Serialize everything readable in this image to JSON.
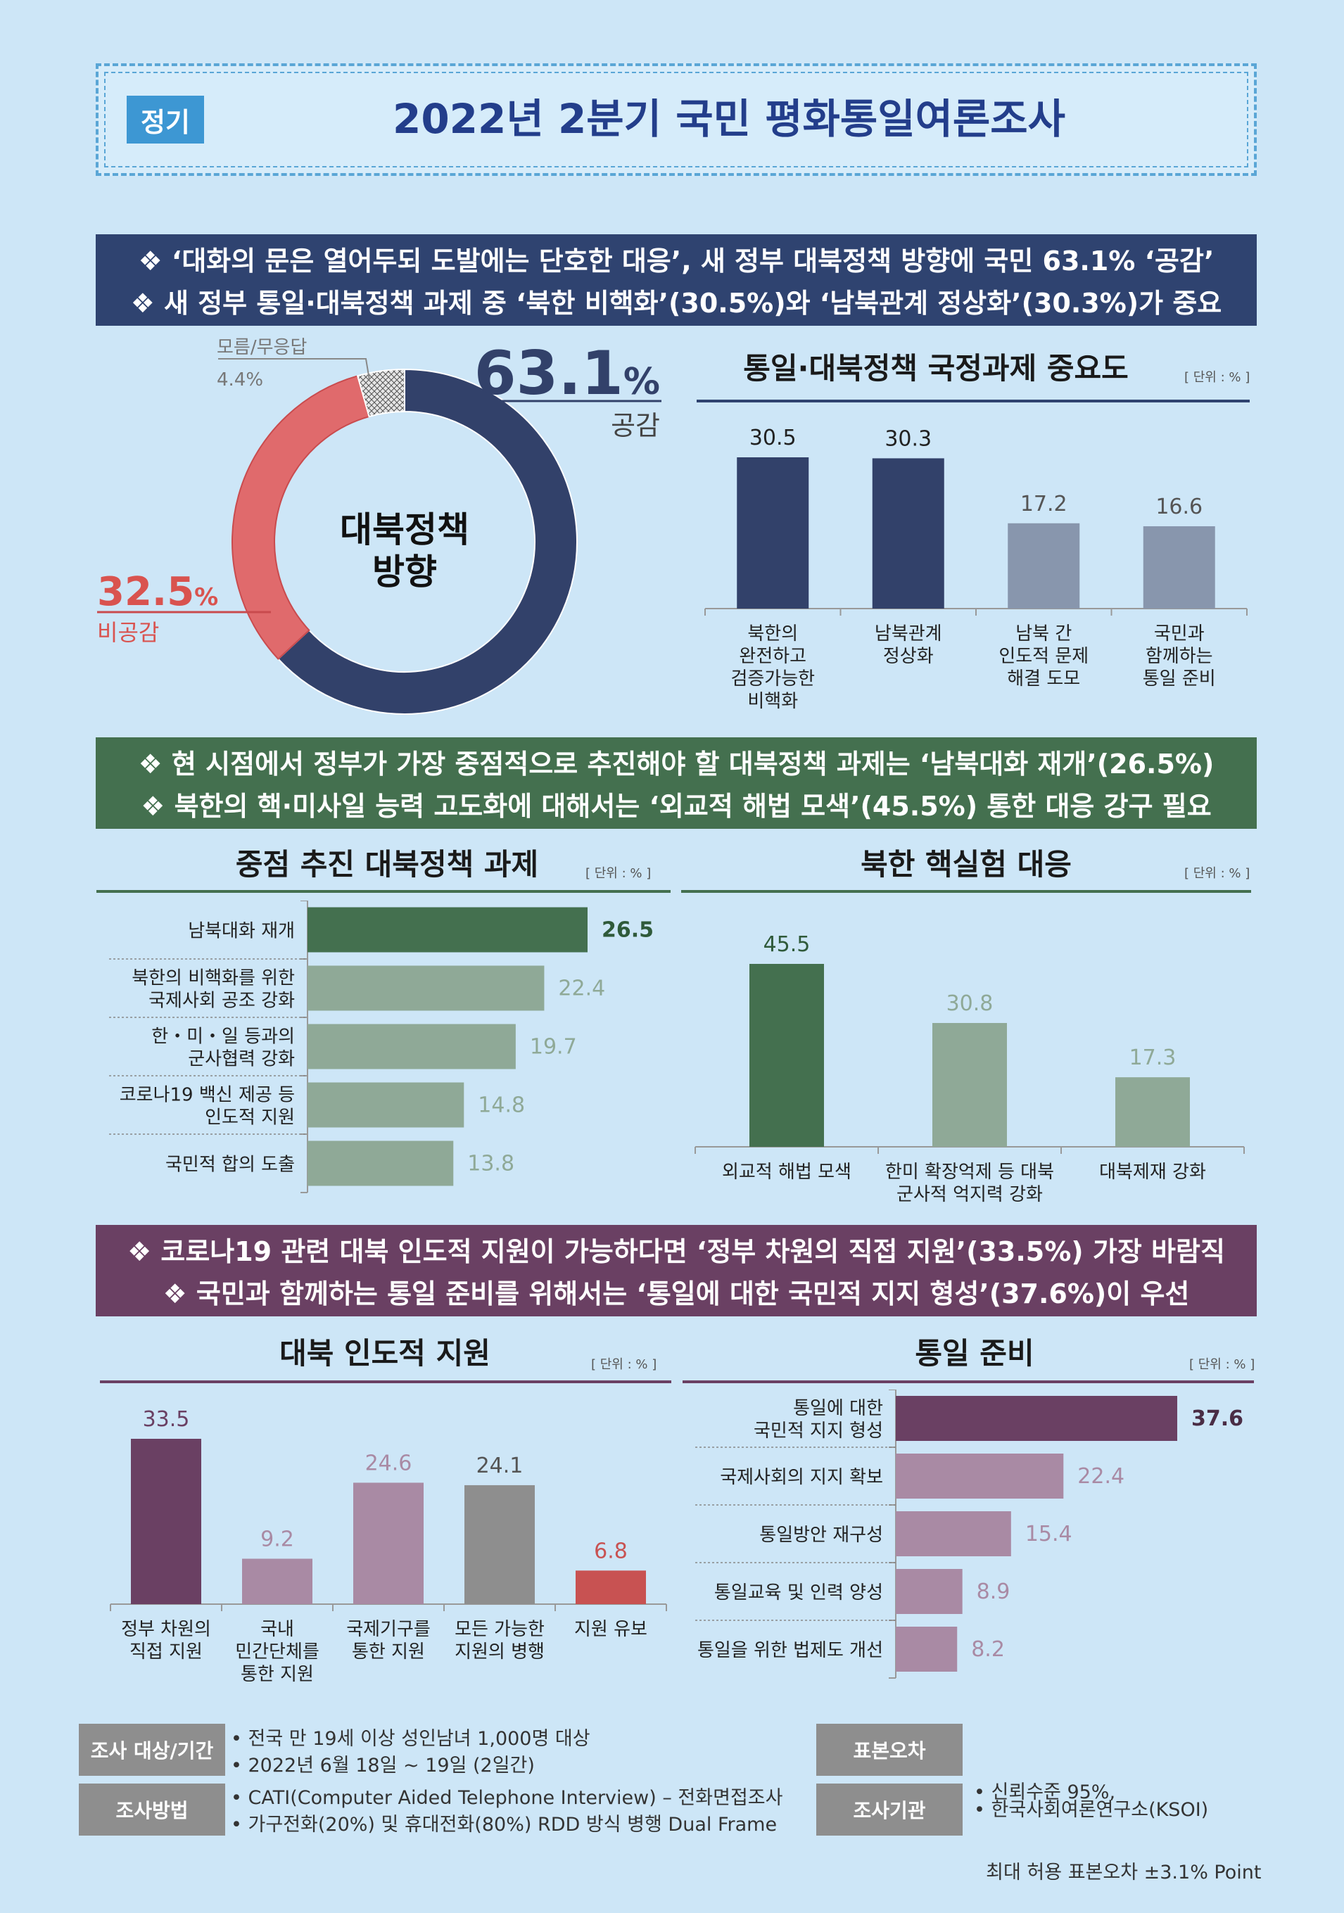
{
  "header": {
    "tag": "정기",
    "title": "2022년 2분기 국민 평화통일여론조사"
  },
  "banners": {
    "section1": [
      "❖ ‘대화의 문은 열어두되 도발에는 단호한 대응’, 새 정부 대북정책 방향에 국민 63.1% ‘공감’",
      "❖ 새 정부 통일·대북정책 과제 중 ‘북한 비핵화’(30.5%)와 ‘남북관계 정상화’(30.3%)가 중요"
    ],
    "section2": [
      "❖ 현 시점에서 정부가 가장 중점적으로 추진해야 할 대북정책 과제는 ‘남북대화 재개’(26.5%)",
      "❖ 북한의 핵·미사일 능력 고도화에 대해서는 ‘외교적 해법 모색’(45.5%) 통한 대응 강구 필요"
    ],
    "section3": [
      "❖ 코로나19 관련 대북 인도적 지원이 가능하다면 ‘정부 차원의 직접 지원’(33.5%) 가장 바람직",
      "❖ 국민과 함께하는 통일 준비를 위해서는 ‘통일에 대한 국민적 지지 형성’(37.6%)이 우선"
    ]
  },
  "chart_data": [
    {
      "type": "pie",
      "center_label": [
        "대북정책",
        "방향"
      ],
      "slices": [
        {
          "label": "공감",
          "value": 63.1,
          "display": "63.1",
          "color": "#32416a"
        },
        {
          "label": "비공감",
          "value": 32.5,
          "display": "32.5",
          "color": "#e06a6c"
        },
        {
          "label": "모름/무응답",
          "value": 4.4,
          "display": "4.4%",
          "color": "#cfcfcf"
        }
      ],
      "percent_sign": "%"
    },
    {
      "type": "bar",
      "title": "통일·대북정책 국정과제 중요도",
      "unit": "[ 단위 : % ]",
      "categories": [
        [
          "북한의",
          "완전하고",
          "검증가능한",
          "비핵화"
        ],
        [
          "남북관계",
          "정상화"
        ],
        [
          "남북 간",
          "인도적 문제",
          "해결 도모"
        ],
        [
          "국민과",
          "함께하는",
          "통일 준비"
        ]
      ],
      "values": [
        30.5,
        30.3,
        17.2,
        16.6
      ],
      "colors": [
        "#32416a",
        "#32416a",
        "#8896ad",
        "#8896ad"
      ],
      "label_colors": [
        "#222",
        "#222",
        "#555",
        "#555"
      ]
    },
    {
      "type": "bar",
      "orientation": "horizontal",
      "title": "중점 추진 대북정책 과제",
      "unit": "[ 단위 : % ]",
      "categories": [
        [
          "남북대화 재개"
        ],
        [
          "북한의 비핵화를 위한",
          "국제사회 공조 강화"
        ],
        [
          "한・미・일 등과의",
          "군사협력 강화"
        ],
        [
          "코로나19 백신 제공 등",
          "인도적 지원"
        ],
        [
          "국민적 합의 도출"
        ]
      ],
      "values": [
        26.5,
        22.4,
        19.7,
        14.8,
        13.8
      ],
      "colors": [
        "#44704f",
        "#8fa997",
        "#8fa997",
        "#8fa997",
        "#8fa997"
      ],
      "label_colors": [
        "#2f5a3a",
        "#8fa997",
        "#8fa997",
        "#8fa997",
        "#8fa997"
      ]
    },
    {
      "type": "bar",
      "title": "북한 핵실험 대응",
      "unit": "[ 단위 : % ]",
      "categories": [
        [
          "외교적 해법 모색"
        ],
        [
          "한미 확장억제 등 대북",
          "군사적 억지력 강화"
        ],
        [
          "대북제재 강화"
        ]
      ],
      "values": [
        45.5,
        30.8,
        17.3
      ],
      "colors": [
        "#44704f",
        "#8fa997",
        "#8fa997"
      ],
      "label_colors": [
        "#2f5a3a",
        "#8fa997",
        "#8fa997"
      ]
    },
    {
      "type": "bar",
      "title": "대북 인도적 지원",
      "unit": "[ 단위 : % ]",
      "categories": [
        [
          "정부 차원의",
          "직접 지원"
        ],
        [
          "국내",
          "민간단체를",
          "통한 지원"
        ],
        [
          "국제기구를",
          "통한 지원"
        ],
        [
          "모든 가능한",
          "지원의 병행"
        ],
        [
          "지원 유보"
        ]
      ],
      "values": [
        33.5,
        9.2,
        24.6,
        24.1,
        6.8
      ],
      "colors": [
        "#6a4063",
        "#a98aa4",
        "#a98aa4",
        "#8e8e8e",
        "#c85252"
      ],
      "label_colors": [
        "#6a4063",
        "#a98aa4",
        "#a98aa4",
        "#555",
        "#c85252"
      ]
    },
    {
      "type": "bar",
      "orientation": "horizontal",
      "title": "통일 준비",
      "unit": "[ 단위 : % ]",
      "categories": [
        [
          "통일에 대한",
          "국민적 지지 형성"
        ],
        [
          "국제사회의 지지 확보"
        ],
        [
          "통일방안 재구성"
        ],
        [
          "통일교육 및 인력 양성"
        ],
        [
          "통일을 위한 법제도 개선"
        ]
      ],
      "values": [
        37.6,
        22.4,
        15.4,
        8.9,
        8.2
      ],
      "colors": [
        "#6a4063",
        "#a98aa4",
        "#a98aa4",
        "#a98aa4",
        "#a98aa4"
      ],
      "label_colors": [
        "#4a2d45",
        "#a98aa4",
        "#a98aa4",
        "#a98aa4",
        "#a98aa4"
      ]
    }
  ],
  "footer": {
    "survey_target_label": "조사 대상/기간",
    "survey_target_lines": [
      "• 전국 만 19세 이상 성인남녀 1,000명 대상",
      "• 2022년 6월 18일 ~ 19일 (2일간)"
    ],
    "method_label": "조사방법",
    "method_lines": [
      "• CATI(Computer Aided Telephone Interview) – 전화면접조사",
      "• 가구전화(20%) 및 휴대전화(80%)  RDD 방식 병행 Dual Frame"
    ],
    "error_label": "표본오차",
    "error_lines": [
      "• 신뢰수준 95%,",
      "  최대 허용 표본오차 ±3.1% Point"
    ],
    "org_label": "조사기관",
    "org_lines": [
      "• 한국사회여론연구소(KSOI)"
    ]
  }
}
